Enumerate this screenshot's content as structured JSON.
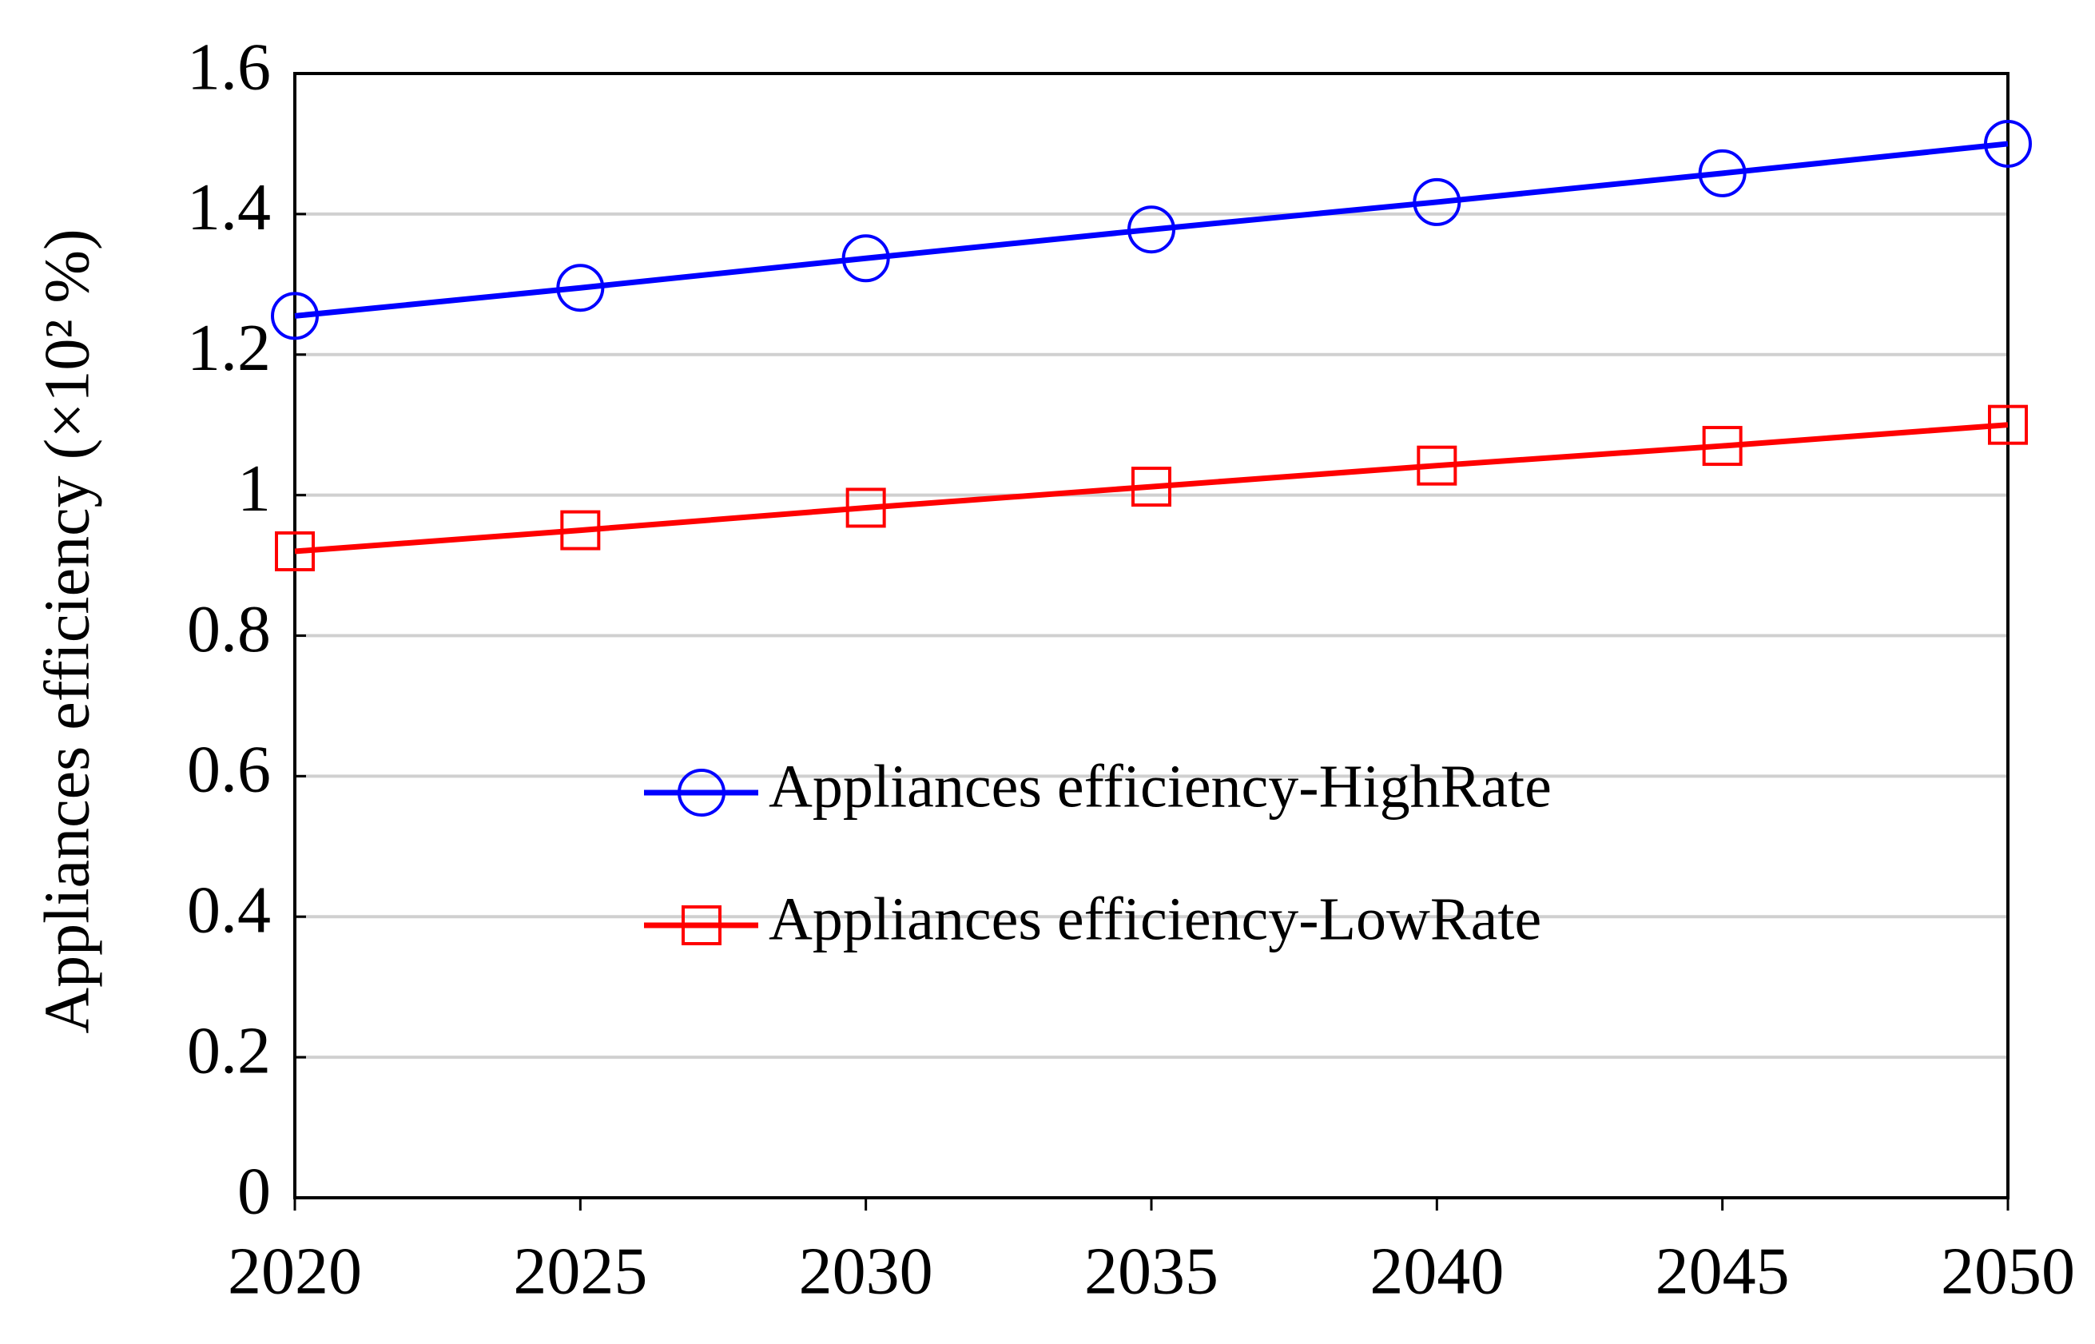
{
  "chart_data": {
    "type": "line",
    "y_label": "Appliances efficiency (×10² %)",
    "x": [
      2020,
      2025,
      2030,
      2035,
      2040,
      2045,
      2050
    ],
    "series": [
      {
        "name": "Appliances efficiency-HighRate",
        "color": "#0000ff",
        "marker": "circle",
        "values": [
          1.255,
          1.295,
          1.337,
          1.378,
          1.417,
          1.458,
          1.5
        ]
      },
      {
        "name": "Appliances efficiency-LowRate",
        "color": "#ff0000",
        "marker": "square",
        "values": [
          0.92,
          0.95,
          0.982,
          1.012,
          1.042,
          1.07,
          1.1
        ]
      }
    ],
    "xlim": [
      2020,
      2050
    ],
    "xticks": [
      2020,
      2025,
      2030,
      2035,
      2040,
      2045,
      2050
    ],
    "ylim": [
      0,
      1.6
    ],
    "yticks": [
      0,
      0.2,
      0.4,
      0.6,
      0.8,
      1,
      1.2,
      1.4,
      1.6
    ],
    "grid": true,
    "legend": "center"
  }
}
